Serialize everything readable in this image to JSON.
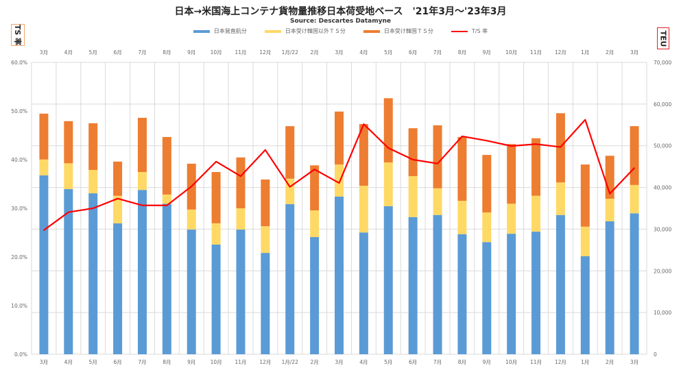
{
  "chart_data": {
    "type": "bar",
    "stacked": true,
    "title": "日本→米国海上コンテナ貨物量推移日本荷受地ベース　'21年3月～'23年3月",
    "subtitle": "Source: Descartes Datamyne",
    "ylabel_left": "TS 率",
    "ylabel_right": "TEU",
    "categories": [
      "3月",
      "4月",
      "5月",
      "6月",
      "7月",
      "8月",
      "9月",
      "10月",
      "11月",
      "12月",
      "1月/22",
      "2月",
      "3月",
      "4月",
      "5月",
      "6月",
      "7月",
      "8月",
      "9月",
      "10月",
      "11月",
      "12月",
      "1月",
      "2月",
      "3月"
    ],
    "series": [
      {
        "name": "日本発直航分",
        "axis": "right",
        "color": "#5b9bd5",
        "values": [
          42900,
          39600,
          38600,
          31400,
          39400,
          36100,
          29900,
          26300,
          29900,
          24300,
          36000,
          28100,
          37800,
          29200,
          35500,
          32900,
          33400,
          28800,
          26900,
          28900,
          29400,
          33400,
          23500,
          31900,
          33800
        ]
      },
      {
        "name": "日本受け韓国以外ＴＳ分",
        "axis": "right",
        "color": "#ffd966",
        "values": [
          3800,
          6200,
          5600,
          6600,
          4300,
          2200,
          4800,
          5100,
          5100,
          6400,
          6100,
          6400,
          7700,
          11200,
          10500,
          9800,
          6400,
          8000,
          7100,
          7200,
          8600,
          7800,
          7100,
          5400,
          6800
        ]
      },
      {
        "name": "日本受け韓国ＴＳ分",
        "axis": "right",
        "color": "#ed7d31",
        "values": [
          11000,
          10100,
          11200,
          8200,
          13000,
          13800,
          11000,
          12300,
          12200,
          11200,
          12600,
          10800,
          12700,
          14800,
          15400,
          11500,
          15100,
          15300,
          13800,
          14300,
          13800,
          16600,
          14900,
          10300,
          14100
        ]
      },
      {
        "name": "T/S 率",
        "axis": "left",
        "type": "line",
        "color": "#ff0000",
        "values": [
          25.5,
          29.2,
          30.0,
          32.0,
          30.6,
          30.6,
          34.5,
          39.6,
          36.6,
          42.0,
          34.4,
          38.0,
          35.2,
          47.3,
          42.4,
          40.0,
          39.2,
          44.8,
          43.9,
          42.8,
          43.2,
          42.6,
          48.2,
          33.0,
          38.3
        ]
      }
    ],
    "ylim_left": [
      0,
      60
    ],
    "ylim_right": [
      0,
      70000
    ],
    "yticks_left": [
      "0.0%",
      "10.0%",
      "20.0%",
      "30.0%",
      "40.0%",
      "50.0%",
      "60.0%"
    ],
    "yticks_right": [
      "0",
      "10,000",
      "20,000",
      "30,000",
      "40,000",
      "50,000",
      "60,000",
      "70,000"
    ],
    "grid": true,
    "legend_position": "top"
  }
}
